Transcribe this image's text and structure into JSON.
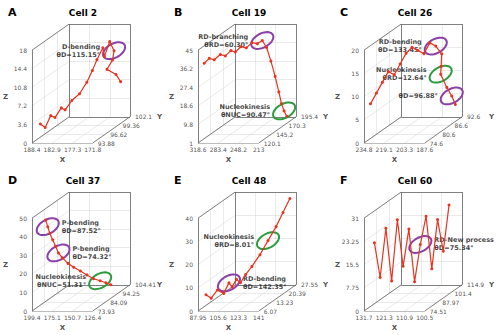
{
  "chart_data": [
    {
      "type": "line3d",
      "panel": "A",
      "title": "Cell 2",
      "xlabel": "X",
      "ylabel": "Y",
      "zlabel": "Z",
      "color": "#e8331f",
      "marker": "circle",
      "grid": true,
      "xlim": [
        188.4,
        171.8
      ],
      "ylim": [
        93.88,
        102.1
      ],
      "zlim": [
        0,
        18
      ],
      "xticks": [
        188.4,
        182.9,
        177.3,
        171.8
      ],
      "yticks": [
        93.88,
        96.62,
        99.36,
        102.1
      ],
      "zticks": [
        0,
        3.6,
        7.2,
        10.8,
        14.4,
        18
      ],
      "x": [
        187.5,
        186.8,
        185.9,
        185,
        184,
        183.2,
        182,
        180.5,
        179,
        178,
        177,
        176,
        175.2,
        174.5,
        173.8,
        174.6,
        175.5,
        174,
        173
      ],
      "y": [
        95,
        95.5,
        96,
        96.2,
        96.8,
        97,
        97.5,
        98,
        98.4,
        98.8,
        99,
        99.5,
        99.2,
        99.8,
        100.2,
        100.5,
        100,
        100.8,
        101
      ],
      "z": [
        3,
        2,
        4,
        3.5,
        5,
        4.5,
        6,
        7,
        9,
        11,
        13,
        15,
        13.5,
        16,
        14,
        12,
        10.5,
        9,
        7.5
      ],
      "annotations": [
        {
          "index": 14,
          "texts": [
            "D-bending",
            "θD=115.15°"
          ],
          "color": "#8b3fa8"
        }
      ]
    },
    {
      "type": "line3d",
      "panel": "B",
      "title": "Cell 19",
      "xlabel": "X",
      "ylabel": "Y",
      "zlabel": "Z",
      "color": "#e8331f",
      "marker": "circle",
      "grid": true,
      "xlim": [
        318.6,
        213
      ],
      "ylim": [
        120.1,
        195.4
      ],
      "zlim": [
        1,
        45
      ],
      "xticks": [
        318.6,
        283.4,
        248.2,
        213
      ],
      "yticks": [
        120.1,
        145.2,
        170.3,
        195.4
      ],
      "zticks": [
        1,
        9.8,
        18.6,
        27.4,
        36.2,
        45
      ],
      "x": [
        312,
        305,
        298,
        290,
        283,
        276,
        270,
        263,
        256,
        249,
        242,
        236,
        232,
        228,
        224,
        221,
        219,
        217,
        215
      ],
      "y": [
        125,
        127,
        129,
        132,
        134,
        137,
        139,
        142,
        145,
        148,
        151,
        154,
        158,
        162,
        166,
        170,
        173,
        176,
        179
      ],
      "z": [
        38,
        40,
        39,
        41,
        40,
        42,
        41,
        43,
        42,
        44,
        43,
        44,
        40,
        33,
        25,
        17,
        11,
        7,
        4
      ],
      "annotations": [
        {
          "index": 11,
          "texts": [
            "RD-branching",
            "θRD=60.30°"
          ],
          "color": "#8b3fa8"
        },
        {
          "index": 17,
          "texts": [
            "Nucleokinesis",
            "θNUC=90.47°"
          ],
          "color": "#2e9b3e"
        }
      ]
    },
    {
      "type": "line3d",
      "panel": "C",
      "title": "Cell 26",
      "xlabel": "X",
      "ylabel": "Y",
      "zlabel": "Z",
      "color": "#e8331f",
      "marker": "circle",
      "grid": true,
      "xlim": [
        234.8,
        187.6
      ],
      "ylim": [
        74.6,
        92.6
      ],
      "zlim": [
        0,
        20
      ],
      "xticks": [
        234.8,
        219.1,
        203.3,
        187.6
      ],
      "yticks": [
        74.6,
        80.6,
        86.6,
        92.6
      ],
      "zticks": [
        0,
        5,
        10,
        15,
        20
      ],
      "x": [
        232,
        229,
        226,
        223,
        220,
        217,
        214,
        211,
        208,
        205,
        202,
        199,
        196,
        198,
        200,
        196,
        193,
        191
      ],
      "y": [
        76,
        77,
        78,
        79,
        80,
        81,
        82,
        83,
        84,
        85,
        86,
        87,
        88,
        89,
        90,
        90.5,
        91,
        91.5
      ],
      "z": [
        8,
        10,
        12,
        14,
        13,
        15,
        17,
        18,
        17,
        16,
        18,
        17,
        15,
        12,
        10,
        7,
        5,
        3
      ],
      "annotations": [
        {
          "index": 11,
          "texts": [
            "RD-bending",
            "θD=133.45°"
          ],
          "color": "#8b3fa8"
        },
        {
          "index": 14,
          "texts": [
            "Nucleokinesis",
            "θRD=12.64°"
          ],
          "color": "#2e9b3e"
        },
        {
          "index": 16,
          "texts": [
            "θD=96.88°"
          ],
          "color": "#8b3fa8"
        }
      ]
    },
    {
      "type": "line3d",
      "panel": "D",
      "title": "Cell 37",
      "xlabel": "X",
      "ylabel": "Y",
      "zlabel": "Z",
      "color": "#e8331f",
      "marker": "circle",
      "grid": true,
      "xlim": [
        199.4,
        126.4
      ],
      "ylim": [
        73.93,
        104.41
      ],
      "zlim": [
        0,
        50
      ],
      "xticks": [
        199.4,
        175.1,
        150.7,
        126.4
      ],
      "yticks": [
        73.93,
        84.09,
        94.25,
        104.41
      ],
      "zticks": [
        0,
        10,
        20,
        30,
        40,
        50
      ],
      "x": [
        186,
        185,
        184,
        182,
        180,
        178,
        175,
        171,
        167,
        162,
        157,
        152,
        147,
        143,
        140
      ],
      "y": [
        76,
        77,
        78,
        79,
        80,
        81,
        82,
        84,
        86,
        88,
        90,
        92,
        94,
        96,
        98
      ],
      "z": [
        48,
        44,
        40,
        36,
        32,
        28,
        25,
        21,
        18,
        15,
        12,
        9,
        7,
        5,
        3
      ],
      "annotations": [
        {
          "index": 1,
          "texts": [
            "P-bending",
            "θD=87.52°"
          ],
          "color": "#8b3fa8"
        },
        {
          "index": 5,
          "texts": [
            "P-bending",
            "θD=74.32°"
          ],
          "color": "#8b3fa8"
        },
        {
          "index": 12,
          "texts": [
            "Nucleokinesis",
            "θNUC=51.31°"
          ],
          "color": "#2e9b3e"
        }
      ]
    },
    {
      "type": "line3d",
      "panel": "E",
      "title": "Cell 48",
      "xlabel": "X",
      "ylabel": "Y",
      "zlabel": "Z",
      "color": "#e8331f",
      "marker": "circle",
      "grid": true,
      "xlim": [
        87.95,
        141
      ],
      "ylim": [
        6.07,
        27.55
      ],
      "zlim": [
        0,
        40
      ],
      "xticks": [
        87.95,
        105.6,
        123.3,
        141
      ],
      "yticks": [
        6.07,
        13.23,
        20.39,
        27.55
      ],
      "zticks": [
        0,
        10,
        20,
        30,
        40
      ],
      "x": [
        92,
        95,
        99,
        103,
        106,
        108,
        111,
        113,
        116,
        120,
        124,
        128,
        132,
        135,
        138
      ],
      "y": [
        8,
        9,
        10,
        11,
        12,
        12.5,
        13,
        14,
        15,
        16,
        18,
        20,
        22,
        24,
        26
      ],
      "z": [
        6,
        4,
        7,
        5,
        9,
        7,
        10,
        8,
        11,
        14,
        18,
        23,
        28,
        33,
        38
      ],
      "annotations": [
        {
          "index": 4,
          "texts": [
            "RD-bending",
            "θD=142.35°"
          ],
          "color": "#8b3fa8"
        },
        {
          "index": 11,
          "texts": [
            "Nucleokinesis",
            "θRD=8.01°"
          ],
          "color": "#2e9b3e"
        }
      ]
    },
    {
      "type": "line3d",
      "panel": "F",
      "title": "Cell 60",
      "xlabel": "X",
      "ylabel": "Y",
      "zlabel": "Z",
      "color": "#e8331f",
      "marker": "circle",
      "grid": true,
      "xlim": [
        131.7,
        100.5
      ],
      "ylim": [
        74.51,
        114.9
      ],
      "zlim": [
        0,
        31
      ],
      "xticks": [
        131.7,
        121.3,
        110.9,
        100.5
      ],
      "yticks": [
        74.51,
        87.97,
        101.4,
        114.9
      ],
      "zticks": [
        0,
        7.75,
        15.5,
        23.25,
        31
      ],
      "x": [
        128,
        126,
        124,
        122,
        120,
        118,
        116,
        114,
        112,
        110,
        108,
        106,
        104,
        102
      ],
      "y": [
        78,
        80,
        82,
        84,
        86,
        88,
        90,
        92,
        94,
        96,
        98,
        100,
        102,
        104
      ],
      "z": [
        22,
        10,
        26,
        8,
        28,
        12,
        24,
        6,
        18,
        27,
        9,
        25,
        14,
        29
      ],
      "annotations": [
        {
          "index": 8,
          "texts": [
            "RD-New process",
            "θD=75.34°"
          ],
          "color": "#8b3fa8"
        }
      ]
    }
  ]
}
